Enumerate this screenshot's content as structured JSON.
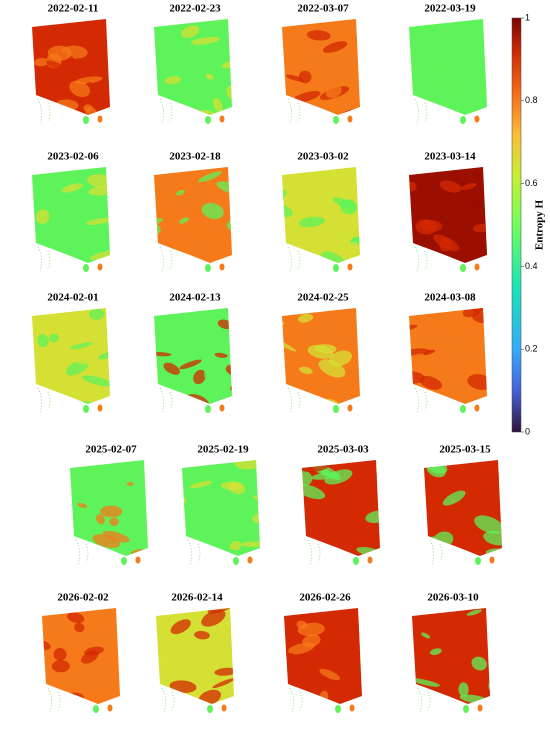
{
  "panels": [
    {
      "title": "2022-02-11"
    },
    {
      "title": "2022-02-23"
    },
    {
      "title": "2022-03-07"
    },
    {
      "title": "2022-03-19"
    },
    {
      "title": "2023-02-06"
    },
    {
      "title": "2023-02-18"
    },
    {
      "title": "2023-03-02"
    },
    {
      "title": "2023-03-14"
    },
    {
      "title": "2024-02-01"
    },
    {
      "title": "2024-02-13"
    },
    {
      "title": "2024-02-25"
    },
    {
      "title": "2024-03-08"
    },
    {
      "title": "2025-02-07"
    },
    {
      "title": "2025-02-19"
    },
    {
      "title": "2025-03-03"
    },
    {
      "title": "2025-03-15"
    },
    {
      "title": "2026-02-02"
    },
    {
      "title": "2026-02-14"
    },
    {
      "title": "2026-02-26"
    },
    {
      "title": "2026-03-10"
    }
  ],
  "colorbar": {
    "label": "Entropy H",
    "lim": [
      0,
      1
    ],
    "ticks": [
      0,
      0.2,
      0.4,
      0.6,
      0.8,
      1
    ]
  }
}
